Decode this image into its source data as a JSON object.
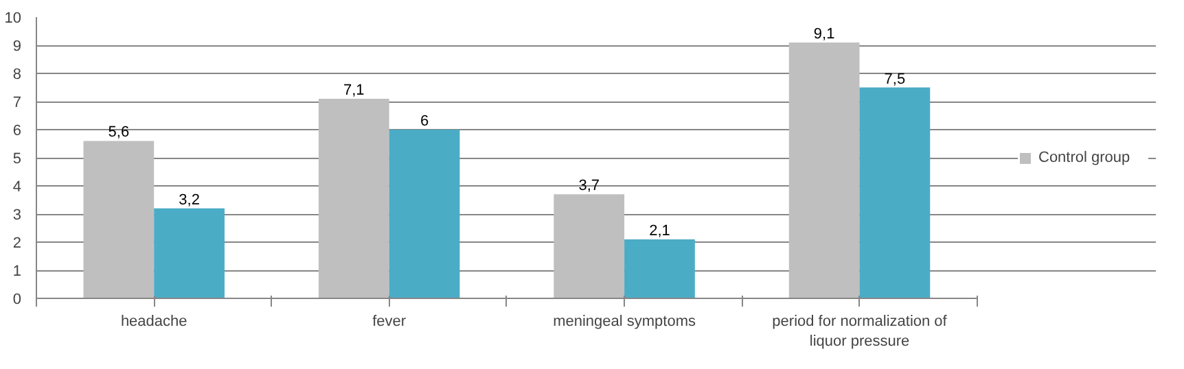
{
  "chart_data": {
    "type": "bar",
    "categories": [
      "headache",
      "fever",
      "meningeal symptoms",
      "period for normalization of liquor pressure"
    ],
    "series": [
      {
        "name": "Control group",
        "color": "#bfbfbf",
        "values": [
          5.6,
          7.1,
          3.7,
          9.1
        ],
        "value_labels": [
          "5,6",
          "7,1",
          "3,7",
          "9,1"
        ]
      },
      {
        "color": "#4bacc6",
        "values": [
          3.2,
          6,
          2.1,
          7.5
        ],
        "value_labels": [
          "3,2",
          "6",
          "2,1",
          "7,5"
        ]
      }
    ],
    "ylim": [
      0,
      10
    ],
    "yticks": [
      0,
      1,
      2,
      3,
      4,
      5,
      6,
      7,
      8,
      9,
      10
    ],
    "grid": "y",
    "legend": "right"
  }
}
